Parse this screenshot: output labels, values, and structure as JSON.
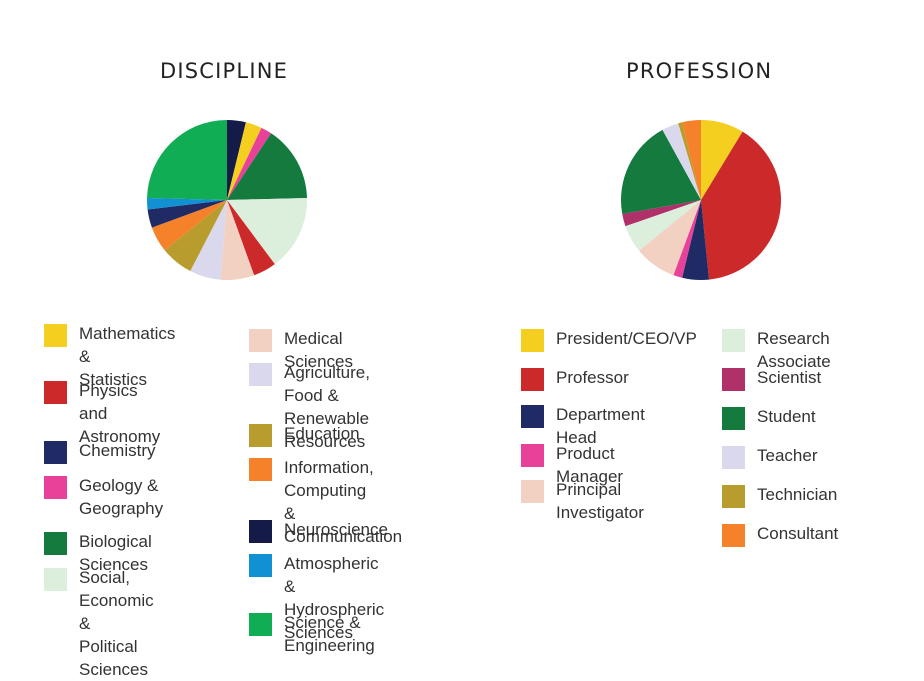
{
  "chart_data": [
    {
      "type": "pie",
      "title": "DISCIPLINE",
      "slices": [
        {
          "label": "Neuroscience",
          "value": 3.8,
          "color": "#141b48"
        },
        {
          "label": "Mathematics & Statistics",
          "value": 3.3,
          "color": "#f5cf1f"
        },
        {
          "label": "Geology & Geography",
          "value": 2.2,
          "color": "#e8419a"
        },
        {
          "label": "Biological Sciences",
          "value": 15.3,
          "color": "#147a3e"
        },
        {
          "label": "Social, Economic & Political Sciences",
          "value": 15.2,
          "color": "#dcefdc"
        },
        {
          "label": "Physics and Astronomy",
          "value": 4.7,
          "color": "#cc2a2a"
        },
        {
          "label": "Medical Sciences",
          "value": 6.8,
          "color": "#f3d1c2"
        },
        {
          "label": "Agriculture, Food & Renewable Resources",
          "value": 6.3,
          "color": "#d9d8ec"
        },
        {
          "label": "Education",
          "value": 6.6,
          "color": "#b89c2e"
        },
        {
          "label": "Information, Computing & Communication",
          "value": 5.2,
          "color": "#f5822a"
        },
        {
          "label": "Chemistry",
          "value": 3.7,
          "color": "#202a64"
        },
        {
          "label": "Atmospheric & Hydrospheric Sciences",
          "value": 2.3,
          "color": "#1190d4"
        },
        {
          "label": "Science & Engineering",
          "value": 24.6,
          "color": "#10ad55"
        }
      ],
      "legend": [
        {
          "label": "Mathematics &\nStatistics",
          "color": "#f5cf1f"
        },
        {
          "label": "Physics and\nAstronomy",
          "color": "#cc2a2a"
        },
        {
          "label": "Chemistry",
          "color": "#202a64"
        },
        {
          "label": "Geology &\nGeography",
          "color": "#e8419a"
        },
        {
          "label": "Biological Sciences",
          "color": "#147a3e"
        },
        {
          "label": "Social, Economic &\nPolitical Sciences",
          "color": "#dcefdc"
        },
        {
          "label": "Medical Sciences",
          "color": "#f3d1c2"
        },
        {
          "label": "Agriculture, Food &\nRenewable Resources",
          "color": "#d9d8ec"
        },
        {
          "label": "Education",
          "color": "#b89c2e"
        },
        {
          "label": "Information, Computing\n& Communication",
          "color": "#f5822a"
        },
        {
          "label": "Neuroscience",
          "color": "#141b48"
        },
        {
          "label": "Atmospheric &\nHydrospheric Sciences",
          "color": "#1190d4"
        },
        {
          "label": "Science & Engineering",
          "color": "#10ad55"
        }
      ]
    },
    {
      "type": "pie",
      "title": "PROFESSION",
      "slices": [
        {
          "label": "President/CEO/VP",
          "value": 8.7,
          "color": "#f5cf1f"
        },
        {
          "label": "Professor",
          "value": 39.7,
          "color": "#cc2a2a"
        },
        {
          "label": "Department Head",
          "value": 5.4,
          "color": "#202a64"
        },
        {
          "label": "Product Manager",
          "value": 1.8,
          "color": "#e8419a"
        },
        {
          "label": "Principal Investigator",
          "value": 8.5,
          "color": "#f3d1c2"
        },
        {
          "label": "Research Associate",
          "value": 5.6,
          "color": "#dcefdc"
        },
        {
          "label": "Scientist",
          "value": 2.5,
          "color": "#b0306a"
        },
        {
          "label": "Student",
          "value": 19.8,
          "color": "#147a3e"
        },
        {
          "label": "Teacher",
          "value": 3.4,
          "color": "#d9d8ec"
        },
        {
          "label": "Technician",
          "value": 0.8,
          "color": "#b89c2e"
        },
        {
          "label": "Consultant",
          "value": 3.8,
          "color": "#f5822a"
        }
      ],
      "legend": [
        {
          "label": "President/CEO/VP",
          "color": "#f5cf1f"
        },
        {
          "label": "Professor",
          "color": "#cc2a2a"
        },
        {
          "label": "Department Head",
          "color": "#202a64"
        },
        {
          "label": "Product Manager",
          "color": "#e8419a"
        },
        {
          "label": "Principal\nInvestigator",
          "color": "#f3d1c2"
        },
        {
          "label": "Research Associate",
          "color": "#dcefdc"
        },
        {
          "label": "Scientist",
          "color": "#b0306a"
        },
        {
          "label": "Student",
          "color": "#147a3e"
        },
        {
          "label": "Teacher",
          "color": "#d9d8ec"
        },
        {
          "label": "Technician",
          "color": "#b89c2e"
        },
        {
          "label": "Consultant",
          "color": "#f5822a"
        }
      ]
    }
  ]
}
